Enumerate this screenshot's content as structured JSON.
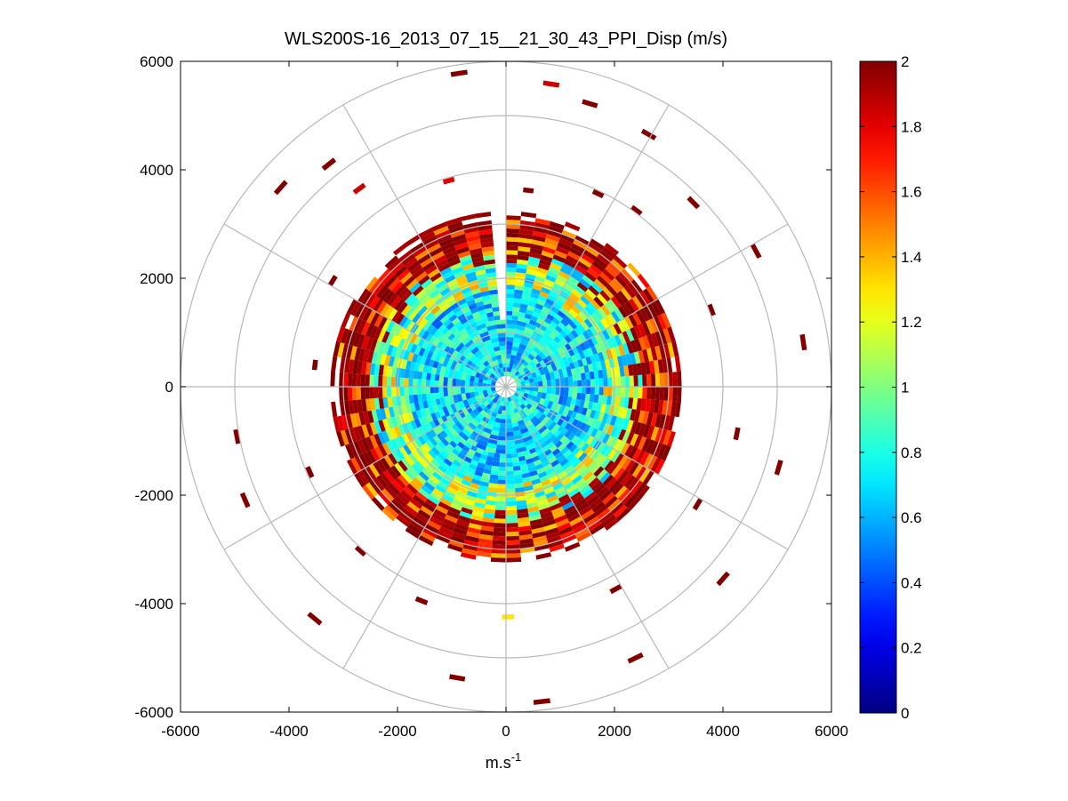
{
  "chart_data": {
    "type": "heatmap",
    "subtype": "polar-ppi",
    "title": "WLS200S-16_2013_07_15__21_30_43_PPI_Disp (m/s)",
    "xlabel": "m.s",
    "xlabel_superscript": "-1",
    "ylabel": "",
    "xlim": [
      -6000,
      6000
    ],
    "ylim": [
      -6000,
      6000
    ],
    "xticks": [
      "-6000",
      "-4000",
      "-2000",
      "0",
      "2000",
      "4000",
      "6000"
    ],
    "yticks": [
      "6000",
      "4000",
      "2000",
      "0",
      "-2000",
      "-4000",
      "-6000"
    ],
    "grid_rings_m": [
      1000,
      2000,
      3000,
      4000,
      5000,
      6000
    ],
    "grid_spokes_deg": [
      0,
      30,
      60,
      90,
      120,
      150,
      180,
      210,
      240,
      270,
      300,
      330
    ],
    "colorbar": {
      "colormap": "jet",
      "range": [
        0,
        2
      ],
      "ticks": [
        "2",
        "1.8",
        "1.6",
        "1.4",
        "1.2",
        "1",
        "0.8",
        "0.6",
        "0.4",
        "0.2",
        "0"
      ]
    },
    "blind_sector_deg": [
      355,
      360
    ],
    "range_gates": [
      {
        "r_max_m": 1800,
        "typical_value_ms": 0.7
      },
      {
        "r_max_m": 2500,
        "typical_value_ms": 1.0
      },
      {
        "r_max_m": 3200,
        "typical_value_ms": 1.8
      },
      {
        "r_max_m": 6000,
        "typical_value_ms": 2.0
      }
    ],
    "sparse_outer_cells": [
      {
        "range_m": 5800,
        "bearing_deg": 350,
        "value_ms": 2.0
      },
      {
        "range_m": 5600,
        "bearing_deg": 7,
        "value_ms": 1.85
      },
      {
        "range_m": 5400,
        "bearing_deg": 15,
        "value_ms": 2.0
      },
      {
        "range_m": 5300,
        "bearing_deg": 28,
        "value_ms": 2.0
      },
      {
        "range_m": 4800,
        "bearing_deg": 44,
        "value_ms": 2.0
      },
      {
        "range_m": 5200,
        "bearing_deg": 60,
        "value_ms": 2.0
      },
      {
        "range_m": 5500,
        "bearing_deg": 80,
        "value_ms": 2.0
      },
      {
        "range_m": 5200,
        "bearing_deg": 105,
        "value_ms": 2.0
      },
      {
        "range_m": 5300,
        "bearing_deg": 130,
        "value_ms": 2.0
      },
      {
        "range_m": 5500,
        "bearing_deg": 153,
        "value_ms": 2.0
      },
      {
        "range_m": 5800,
        "bearing_deg": 172,
        "value_ms": 2.0
      },
      {
        "range_m": 5400,
        "bearing_deg": 188,
        "value_ms": 2.0
      },
      {
        "range_m": 5500,
        "bearing_deg": 218,
        "value_ms": 2.0
      },
      {
        "range_m": 5200,
        "bearing_deg": 245,
        "value_ms": 2.0
      },
      {
        "range_m": 5000,
        "bearing_deg": 258,
        "value_ms": 2.0
      },
      {
        "range_m": 5500,
        "bearing_deg": 310,
        "value_ms": 2.0
      },
      {
        "range_m": 5200,
        "bearing_deg": 320,
        "value_ms": 2.0
      },
      {
        "range_m": 4500,
        "bearing_deg": 322,
        "value_ms": 1.85
      },
      {
        "range_m": 3900,
        "bearing_deg": 343,
        "value_ms": 1.8
      },
      {
        "range_m": 3600,
        "bearing_deg": 5,
        "value_ms": 2.0
      },
      {
        "range_m": 3900,
        "bearing_deg": 24,
        "value_ms": 2.0
      },
      {
        "range_m": 4000,
        "bearing_deg": 35,
        "value_ms": 2.0
      },
      {
        "range_m": 4000,
        "bearing_deg": 68,
        "value_ms": 2.0
      },
      {
        "range_m": 4300,
        "bearing_deg": 100,
        "value_ms": 2.0
      },
      {
        "range_m": 4100,
        "bearing_deg": 120,
        "value_ms": 2.0
      },
      {
        "range_m": 4200,
        "bearing_deg": 150,
        "value_ms": 2.0
      },
      {
        "range_m": 4200,
        "bearing_deg": 178,
        "value_ms": 1.3
      },
      {
        "range_m": 4200,
        "bearing_deg": 200,
        "value_ms": 2.0
      },
      {
        "range_m": 4000,
        "bearing_deg": 220,
        "value_ms": 2.0
      },
      {
        "range_m": 3900,
        "bearing_deg": 245,
        "value_ms": 2.0
      },
      {
        "range_m": 3500,
        "bearing_deg": 275,
        "value_ms": 2.0
      },
      {
        "range_m": 3700,
        "bearing_deg": 300,
        "value_ms": 2.0
      }
    ]
  }
}
